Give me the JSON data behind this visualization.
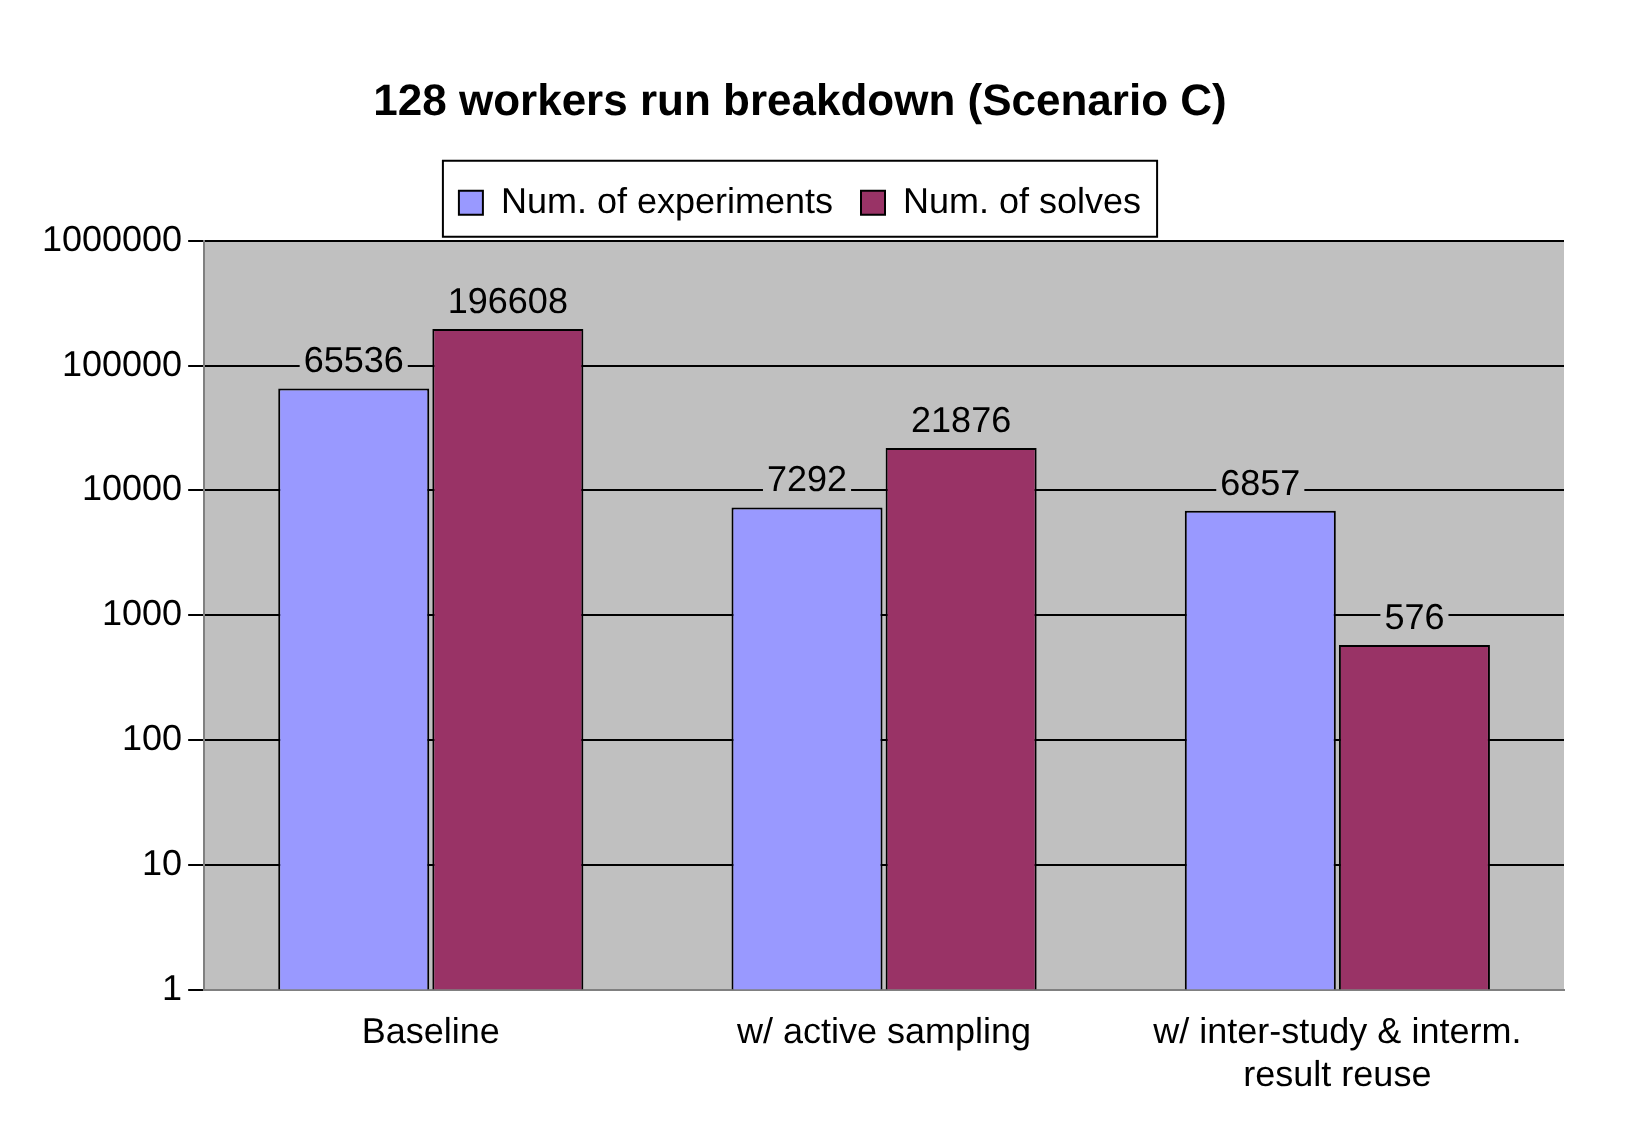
{
  "chart_data": {
    "type": "bar",
    "title": "128 workers run breakdown (Scenario C)",
    "categories": [
      "Baseline",
      "w/ active sampling",
      "w/ inter-study & interm. result reuse"
    ],
    "series": [
      {
        "name": "Num. of experiments",
        "color": "#9999ff",
        "values": [
          65536,
          7292,
          6857
        ]
      },
      {
        "name": "Num. of solves",
        "color": "#993366",
        "values": [
          196608,
          21876,
          576
        ]
      }
    ],
    "log": "y",
    "ylim": [
      1,
      1000000
    ],
    "yticks": [
      1,
      10,
      100,
      1000,
      10000,
      100000,
      1000000
    ],
    "grid": "y",
    "legend": "top",
    "data_labels": true
  }
}
